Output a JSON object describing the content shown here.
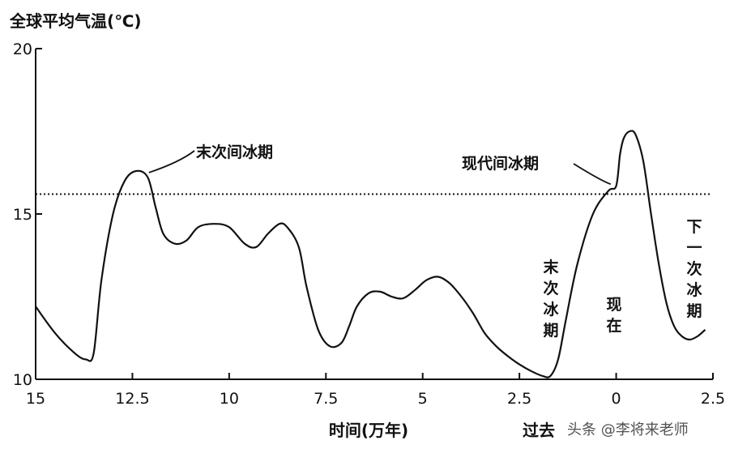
{
  "chart_data": {
    "type": "line",
    "title": "全球平均气温(℃)",
    "xlabel": "时间(万年)",
    "ylabel": "",
    "x_axis_note": "过去",
    "xlim": [
      -15,
      2.5
    ],
    "ylim": [
      10,
      20
    ],
    "x_ticks": [
      "15",
      "12.5",
      "10",
      "7.5",
      "5",
      "2.5",
      "0",
      "2.5"
    ],
    "x_tick_values": [
      -15,
      -12.5,
      -10,
      -7.5,
      -5,
      -2.5,
      0,
      2.5
    ],
    "y_ticks": [
      "10",
      "15",
      "20"
    ],
    "y_tick_values": [
      10,
      15,
      20
    ],
    "reference_line": {
      "y": 15.6,
      "style": "dotted"
    },
    "series": [
      {
        "x": [
          -15,
          -14.5,
          -14.0,
          -13.7,
          -13.5,
          -13.3,
          -13.0,
          -12.7,
          -12.4,
          -12.1,
          -11.9,
          -11.7,
          -11.4,
          -11.1,
          -10.8,
          -10.4,
          -10.0,
          -9.6,
          -9.3,
          -9.0,
          -8.7,
          -8.5,
          -8.2,
          -8.0,
          -7.7,
          -7.4,
          -7.1,
          -6.9,
          -6.7,
          -6.4,
          -6.1,
          -5.8,
          -5.5,
          -5.2,
          -4.9,
          -4.6,
          -4.3,
          -4.0,
          -3.7,
          -3.4,
          -3.1,
          -2.8,
          -2.5,
          -2.2,
          -1.9,
          -1.7,
          -1.5,
          -1.3,
          -1.0,
          -0.6,
          -0.2,
          0.0,
          0.1,
          0.2,
          0.35,
          0.5,
          0.7,
          0.9,
          1.1,
          1.3,
          1.5,
          1.7,
          1.9,
          2.1,
          2.3
        ],
        "y": [
          12.2,
          11.4,
          10.8,
          10.6,
          10.8,
          13.0,
          15.0,
          16.0,
          16.3,
          16.1,
          15.2,
          14.4,
          14.1,
          14.2,
          14.6,
          14.7,
          14.6,
          14.1,
          14.0,
          14.4,
          14.7,
          14.6,
          14.0,
          12.8,
          11.5,
          11.0,
          11.1,
          11.6,
          12.2,
          12.6,
          12.65,
          12.5,
          12.45,
          12.7,
          13.0,
          13.1,
          12.9,
          12.5,
          12.0,
          11.4,
          11.0,
          10.7,
          10.45,
          10.25,
          10.1,
          10.1,
          10.6,
          11.8,
          13.5,
          15.0,
          15.7,
          15.85,
          16.8,
          17.3,
          17.5,
          17.4,
          16.6,
          15.0,
          13.5,
          12.3,
          11.6,
          11.3,
          11.2,
          11.3,
          11.5
        ]
      }
    ],
    "annotations": [
      {
        "text": "末次间冰期",
        "x": -12.2,
        "y": 16.3,
        "orientation": "horizontal"
      },
      {
        "text": "现代间冰期",
        "x": -0.1,
        "y": 15.85,
        "orientation": "horizontal"
      },
      {
        "text": "末次冰期",
        "x": -2.1,
        "y": 11.5,
        "orientation": "vertical"
      },
      {
        "text": "现在",
        "x": 0.0,
        "y": 12.0,
        "orientation": "vertical"
      },
      {
        "text": "下一次冰期",
        "x": 2.0,
        "y": 13.5,
        "orientation": "vertical"
      }
    ],
    "grid": false,
    "legend": "none"
  },
  "watermark": "头条 @李将来老师"
}
